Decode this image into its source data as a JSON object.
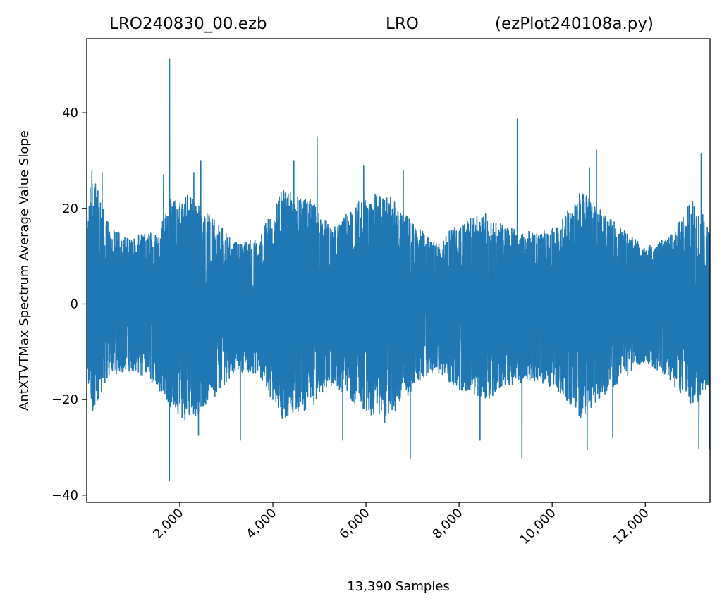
{
  "title": {
    "left": "LRO240830_00.ezb",
    "center": "LRO",
    "right": "(ezPlot240108a.py)"
  },
  "chart_data": {
    "type": "line",
    "xlabel": "13,390 Samples",
    "ylabel": "AntXTVTMax Spectrum Average Value Slope",
    "xlim": [
      1,
      13390
    ],
    "ylim": [
      -41.5,
      55.5
    ],
    "x_ticks": [
      2000,
      4000,
      6000,
      8000,
      10000,
      12000
    ],
    "x_tick_labels": [
      "2,000",
      "4,000",
      "6,000",
      "8,000",
      "10,000",
      "12,000"
    ],
    "y_ticks": [
      -40,
      -20,
      0,
      20,
      40
    ],
    "y_tick_labels": [
      "−40",
      "−20",
      "0",
      "20",
      "40"
    ],
    "grid": false,
    "legend": "none",
    "series": [
      {
        "color": "#1f77b4",
        "samples": 13390,
        "envelope_x": [
          1,
          100,
          500,
          1000,
          1500,
          1800,
          2200,
          2700,
          3200,
          3700,
          4200,
          4800,
          5300,
          5900,
          6400,
          7000,
          7500,
          8000,
          8600,
          9100,
          9600,
          10100,
          10600,
          11000,
          11500,
          12000,
          12500,
          13000,
          13390
        ],
        "envelope_max": [
          18,
          28,
          16,
          14,
          16,
          22,
          24,
          18,
          13,
          14,
          24,
          22,
          16,
          22,
          24,
          17,
          13,
          17,
          19,
          16,
          15,
          16,
          24,
          20,
          16,
          12,
          14,
          22,
          17
        ],
        "envelope_min": [
          -18,
          -23,
          -15,
          -14,
          -17,
          -22,
          -25,
          -20,
          -14,
          -15,
          -24,
          -22,
          -17,
          -22,
          -25,
          -18,
          -14,
          -18,
          -20,
          -17,
          -16,
          -18,
          -24,
          -20,
          -16,
          -12,
          -16,
          -22,
          -17
        ],
        "spikes": [
          {
            "x": 1780,
            "y": 51.2
          },
          {
            "x": 1775,
            "y": -37.0
          },
          {
            "x": 110,
            "y": 27.8
          },
          {
            "x": 330,
            "y": 27.5
          },
          {
            "x": 1650,
            "y": 27.0
          },
          {
            "x": 2300,
            "y": 27.5
          },
          {
            "x": 2450,
            "y": 30.0
          },
          {
            "x": 4450,
            "y": 30.0
          },
          {
            "x": 4950,
            "y": 35.0
          },
          {
            "x": 5950,
            "y": 29.0
          },
          {
            "x": 6800,
            "y": 28.0
          },
          {
            "x": 9250,
            "y": 38.7
          },
          {
            "x": 10950,
            "y": 32.2
          },
          {
            "x": 10800,
            "y": 28.5
          },
          {
            "x": 13200,
            "y": 31.5
          },
          {
            "x": 2400,
            "y": -27.5
          },
          {
            "x": 3300,
            "y": -28.5
          },
          {
            "x": 5500,
            "y": -28.5
          },
          {
            "x": 6950,
            "y": -32.3
          },
          {
            "x": 8450,
            "y": -28.5
          },
          {
            "x": 9350,
            "y": -32.2
          },
          {
            "x": 10750,
            "y": -30.5
          },
          {
            "x": 11300,
            "y": -28.0
          },
          {
            "x": 13150,
            "y": -30.3
          },
          {
            "x": 13380,
            "y": -30.3
          }
        ]
      }
    ]
  }
}
